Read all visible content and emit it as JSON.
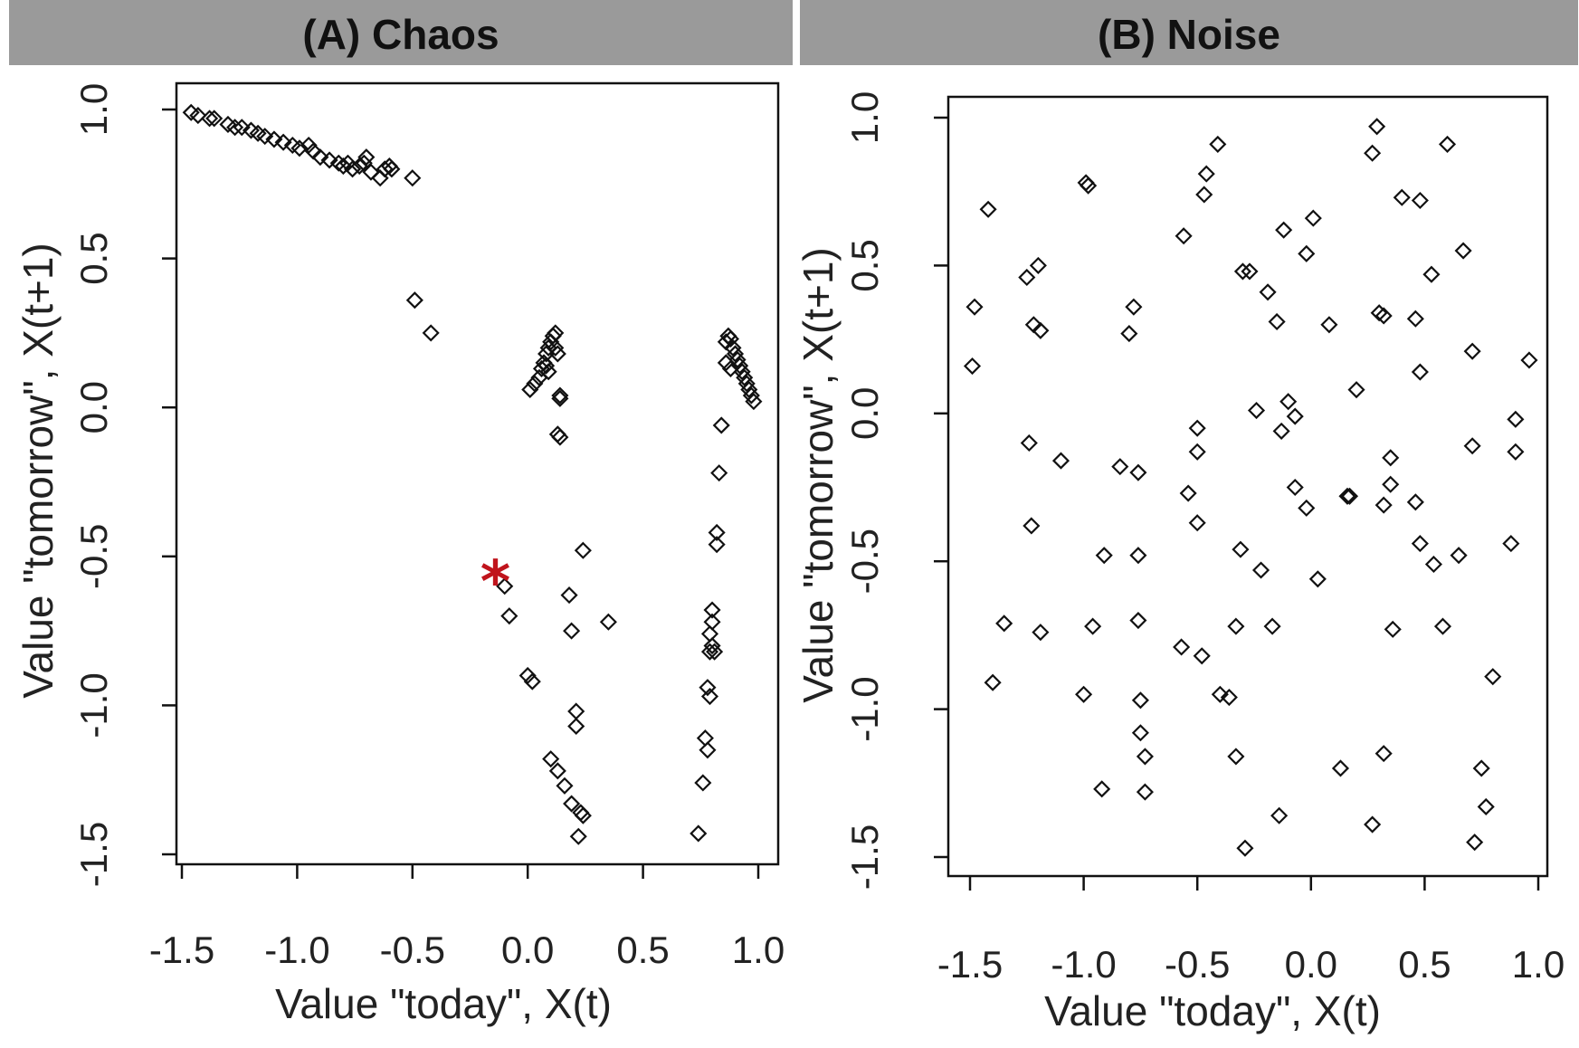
{
  "chart_data": [
    {
      "type": "scatter",
      "panel": "A",
      "title": "(A) Chaos",
      "xlabel": "Value \"today\", X(t)",
      "ylabel": "Value \"tomorrow\", X(t+1)",
      "xlim": [
        -1.55,
        1.05
      ],
      "ylim": [
        -1.53,
        1.08
      ],
      "xticks": [
        -1.5,
        -1.0,
        -0.5,
        0.0,
        0.5,
        1.0
      ],
      "xtick_labels": [
        "-1.5",
        "-1.0",
        "-0.5",
        "0.0",
        "0.5",
        "1.0"
      ],
      "yticks": [
        -1.5,
        -1.0,
        -0.5,
        0.0,
        0.5,
        1.0
      ],
      "ytick_labels": [
        "-1.5",
        "-1.0",
        "-0.5",
        "0.0",
        "0.5",
        "1.0"
      ],
      "marker": "open-diamond",
      "highlight": {
        "symbol": "*",
        "color": "#c0141c",
        "x": -0.14,
        "y": -0.58
      },
      "points": [
        [
          -1.46,
          0.99
        ],
        [
          -1.43,
          0.98
        ],
        [
          -1.38,
          0.97
        ],
        [
          -1.36,
          0.97
        ],
        [
          -1.3,
          0.95
        ],
        [
          -1.27,
          0.94
        ],
        [
          -1.24,
          0.94
        ],
        [
          -1.2,
          0.93
        ],
        [
          -1.17,
          0.92
        ],
        [
          -1.14,
          0.91
        ],
        [
          -1.1,
          0.9
        ],
        [
          -1.06,
          0.89
        ],
        [
          -1.02,
          0.88
        ],
        [
          -0.99,
          0.87
        ],
        [
          -0.95,
          0.88
        ],
        [
          -0.93,
          0.86
        ],
        [
          -0.9,
          0.84
        ],
        [
          -0.86,
          0.83
        ],
        [
          -0.82,
          0.82
        ],
        [
          -0.8,
          0.81
        ],
        [
          -0.78,
          0.82
        ],
        [
          -0.76,
          0.8
        ],
        [
          -0.73,
          0.81
        ],
        [
          -0.71,
          0.82
        ],
        [
          -0.7,
          0.84
        ],
        [
          -0.68,
          0.79
        ],
        [
          -0.64,
          0.77
        ],
        [
          -0.62,
          0.8
        ],
        [
          -0.6,
          0.81
        ],
        [
          -0.59,
          0.8
        ],
        [
          -0.5,
          0.77
        ],
        [
          -0.49,
          0.36
        ],
        [
          -0.42,
          0.25
        ],
        [
          0.01,
          0.06
        ],
        [
          0.03,
          0.08
        ],
        [
          0.05,
          0.1
        ],
        [
          0.06,
          0.13
        ],
        [
          0.07,
          0.15
        ],
        [
          0.08,
          0.18
        ],
        [
          0.09,
          0.2
        ],
        [
          0.1,
          0.22
        ],
        [
          0.11,
          0.24
        ],
        [
          0.12,
          0.25
        ],
        [
          0.12,
          0.2
        ],
        [
          0.13,
          0.18
        ],
        [
          0.08,
          0.14
        ],
        [
          0.09,
          0.12
        ],
        [
          0.14,
          0.04
        ],
        [
          0.14,
          0.03
        ],
        [
          0.13,
          -0.09
        ],
        [
          0.14,
          -0.1
        ],
        [
          -0.1,
          -0.6
        ],
        [
          -0.08,
          -0.7
        ],
        [
          0.0,
          -0.9
        ],
        [
          0.02,
          -0.92
        ],
        [
          0.18,
          -0.63
        ],
        [
          0.24,
          -0.48
        ],
        [
          0.35,
          -0.72
        ],
        [
          0.19,
          -0.75
        ],
        [
          0.21,
          -1.02
        ],
        [
          0.21,
          -1.07
        ],
        [
          0.1,
          -1.18
        ],
        [
          0.13,
          -1.22
        ],
        [
          0.16,
          -1.27
        ],
        [
          0.19,
          -1.33
        ],
        [
          0.23,
          -1.36
        ],
        [
          0.24,
          -1.37
        ],
        [
          0.22,
          -1.44
        ],
        [
          0.86,
          0.22
        ],
        [
          0.87,
          0.24
        ],
        [
          0.88,
          0.23
        ],
        [
          0.89,
          0.2
        ],
        [
          0.9,
          0.18
        ],
        [
          0.91,
          0.16
        ],
        [
          0.92,
          0.14
        ],
        [
          0.93,
          0.12
        ],
        [
          0.94,
          0.1
        ],
        [
          0.95,
          0.08
        ],
        [
          0.96,
          0.06
        ],
        [
          0.97,
          0.04
        ],
        [
          0.98,
          0.02
        ],
        [
          0.86,
          0.15
        ],
        [
          0.88,
          0.13
        ],
        [
          0.84,
          -0.06
        ],
        [
          0.83,
          -0.22
        ],
        [
          0.82,
          -0.42
        ],
        [
          0.82,
          -0.46
        ],
        [
          0.8,
          -0.68
        ],
        [
          0.8,
          -0.72
        ],
        [
          0.79,
          -0.76
        ],
        [
          0.8,
          -0.8
        ],
        [
          0.81,
          -0.82
        ],
        [
          0.79,
          -0.82
        ],
        [
          0.78,
          -0.94
        ],
        [
          0.79,
          -0.97
        ],
        [
          0.77,
          -1.11
        ],
        [
          0.78,
          -1.15
        ],
        [
          0.76,
          -1.26
        ],
        [
          0.74,
          -1.43
        ]
      ]
    },
    {
      "type": "scatter",
      "panel": "B",
      "title": "(B) Noise",
      "xlabel": "Value \"today\", X(t)",
      "ylabel": "Value \"tomorrow\", X(t+1)",
      "xlim": [
        -1.55,
        1.05
      ],
      "ylim": [
        -1.53,
        1.08
      ],
      "xticks": [
        -1.5,
        -1.0,
        -0.5,
        0.0,
        0.5,
        1.0
      ],
      "xtick_labels": [
        "-1.5",
        "-1.0",
        "-0.5",
        "0.0",
        "0.5",
        "1.0"
      ],
      "yticks": [
        -1.5,
        -1.0,
        -0.5,
        0.0,
        0.5,
        1.0
      ],
      "ytick_labels": [
        "-1.5",
        "-1.0",
        "-0.5",
        "0.0",
        "0.5",
        "1.0"
      ],
      "marker": "open-diamond",
      "points": [
        [
          -1.42,
          0.69
        ],
        [
          -1.48,
          0.36
        ],
        [
          -1.49,
          0.16
        ],
        [
          -1.25,
          0.46
        ],
        [
          -1.2,
          0.5
        ],
        [
          -1.22,
          0.3
        ],
        [
          -1.19,
          0.28
        ],
        [
          -1.24,
          -0.1
        ],
        [
          -1.1,
          -0.16
        ],
        [
          -1.23,
          -0.38
        ],
        [
          -1.35,
          -0.71
        ],
        [
          -1.19,
          -0.74
        ],
        [
          -1.4,
          -0.91
        ],
        [
          -0.98,
          0.77
        ],
        [
          -0.99,
          0.78
        ],
        [
          -0.78,
          0.36
        ],
        [
          -0.8,
          0.27
        ],
        [
          -0.84,
          -0.18
        ],
        [
          -0.76,
          -0.2
        ],
        [
          -0.91,
          -0.48
        ],
        [
          -0.76,
          -0.48
        ],
        [
          -0.96,
          -0.72
        ],
        [
          -0.76,
          -0.7
        ],
        [
          -1.0,
          -0.95
        ],
        [
          -0.75,
          -0.97
        ],
        [
          -0.75,
          -1.08
        ],
        [
          -0.73,
          -1.16
        ],
        [
          -0.92,
          -1.27
        ],
        [
          -0.73,
          -1.28
        ],
        [
          -0.56,
          0.6
        ],
        [
          -0.46,
          0.81
        ],
        [
          -0.47,
          0.74
        ],
        [
          -0.41,
          0.91
        ],
        [
          -0.5,
          -0.05
        ],
        [
          -0.5,
          -0.13
        ],
        [
          -0.54,
          -0.27
        ],
        [
          -0.5,
          -0.37
        ],
        [
          -0.57,
          -0.79
        ],
        [
          -0.48,
          -0.82
        ],
        [
          -0.4,
          -0.95
        ],
        [
          -0.36,
          -0.96
        ],
        [
          -0.33,
          -0.72
        ],
        [
          -0.31,
          -0.46
        ],
        [
          -0.22,
          -0.53
        ],
        [
          -0.33,
          -1.16
        ],
        [
          -0.29,
          -1.47
        ],
        [
          -0.3,
          0.48
        ],
        [
          -0.27,
          0.48
        ],
        [
          -0.19,
          0.41
        ],
        [
          -0.15,
          0.31
        ],
        [
          -0.12,
          0.62
        ],
        [
          0.01,
          0.66
        ],
        [
          -0.02,
          0.54
        ],
        [
          0.08,
          0.3
        ],
        [
          -0.24,
          0.01
        ],
        [
          -0.1,
          0.04
        ],
        [
          -0.13,
          -0.06
        ],
        [
          -0.07,
          -0.01
        ],
        [
          -0.07,
          -0.25
        ],
        [
          -0.02,
          -0.32
        ],
        [
          0.03,
          -0.56
        ],
        [
          -0.17,
          -0.72
        ],
        [
          -0.14,
          -1.36
        ],
        [
          0.13,
          -1.2
        ],
        [
          0.16,
          -0.28
        ],
        [
          0.17,
          -0.28
        ],
        [
          0.2,
          0.08
        ],
        [
          0.27,
          0.88
        ],
        [
          0.29,
          0.97
        ],
        [
          0.3,
          0.34
        ],
        [
          0.32,
          0.33
        ],
        [
          0.35,
          -0.15
        ],
        [
          0.35,
          -0.24
        ],
        [
          0.32,
          -0.31
        ],
        [
          0.36,
          -0.73
        ],
        [
          0.32,
          -1.15
        ],
        [
          0.27,
          -1.39
        ],
        [
          0.4,
          0.73
        ],
        [
          0.48,
          0.72
        ],
        [
          0.46,
          0.32
        ],
        [
          0.48,
          0.14
        ],
        [
          0.46,
          -0.3
        ],
        [
          0.48,
          -0.44
        ],
        [
          0.53,
          0.47
        ],
        [
          0.54,
          -0.51
        ],
        [
          0.58,
          -0.72
        ],
        [
          0.6,
          0.91
        ],
        [
          0.65,
          -0.48
        ],
        [
          0.67,
          0.55
        ],
        [
          0.71,
          0.21
        ],
        [
          0.71,
          -0.11
        ],
        [
          0.75,
          -1.2
        ],
        [
          0.77,
          -1.33
        ],
        [
          0.8,
          -0.89
        ],
        [
          0.72,
          -1.45
        ],
        [
          0.9,
          -0.02
        ],
        [
          0.9,
          -0.13
        ],
        [
          0.88,
          -0.44
        ],
        [
          0.96,
          0.18
        ]
      ]
    }
  ]
}
